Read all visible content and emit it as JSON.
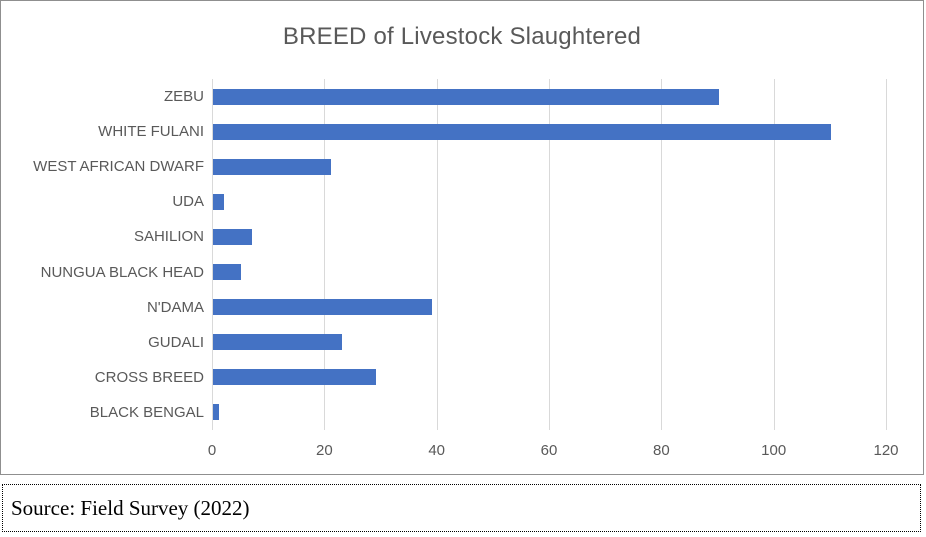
{
  "chart": {
    "source_note": "Source: Field Survey (2022)"
  },
  "chart_data": {
    "type": "bar",
    "orientation": "horizontal",
    "title": "BREED of Livestock Slaughtered",
    "categories": [
      "ZEBU",
      "WHITE FULANI",
      "WEST AFRICAN DWARF",
      "UDA",
      "SAHILION",
      "NUNGUA BLACK HEAD",
      "N'DAMA",
      "GUDALI",
      "CROSS BREED",
      "BLACK BENGAL"
    ],
    "values": [
      90,
      110,
      21,
      2,
      7,
      5,
      39,
      23,
      29,
      1
    ],
    "xlabel": "",
    "ylabel": "",
    "xlim": [
      0,
      120
    ],
    "x_ticks": [
      0,
      20,
      40,
      60,
      80,
      100,
      120
    ],
    "grid": "vertical",
    "legend": "none",
    "colors": {
      "bar": "#4472C4",
      "gridline": "#D9D9D9",
      "title": "#595959",
      "axis_labels": "#595959"
    }
  }
}
